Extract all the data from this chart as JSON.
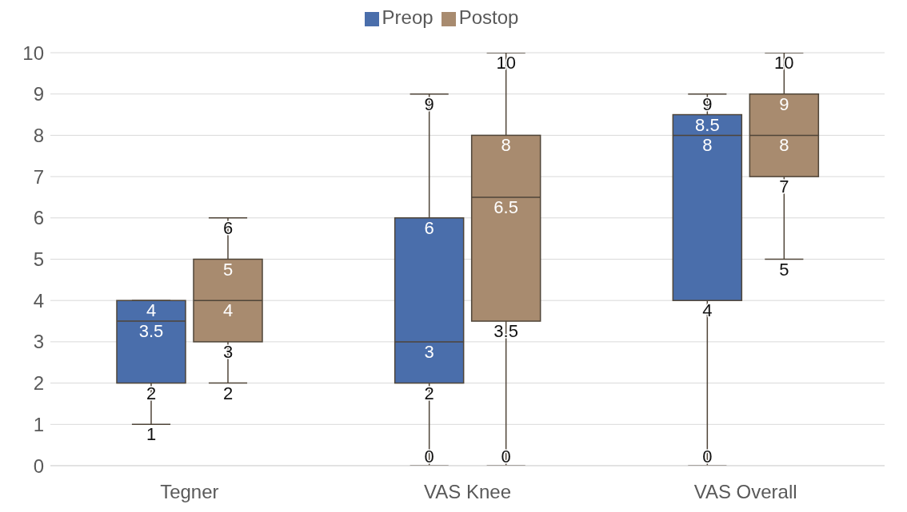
{
  "chart_data": {
    "type": "box",
    "categories": [
      "Tegner",
      "VAS Knee",
      "VAS Overall"
    ],
    "series": [
      {
        "name": "Preop",
        "color": "#4a6eab",
        "boxes": [
          {
            "low": 1,
            "q1": 2,
            "median": 3.5,
            "q3": 4,
            "high": 4
          },
          {
            "low": 0,
            "q1": 2,
            "median": 3,
            "q3": 6,
            "high": 9
          },
          {
            "low": 0,
            "q1": 4,
            "median": 8,
            "q3": 8.5,
            "high": 9
          }
        ]
      },
      {
        "name": "Postop",
        "color": "#a88b6f",
        "boxes": [
          {
            "low": 2,
            "q1": 3,
            "median": 4,
            "q3": 5,
            "high": 6
          },
          {
            "low": 0,
            "q1": 3.5,
            "median": 6.5,
            "q3": 8,
            "high": 10
          },
          {
            "low": 5,
            "q1": 7,
            "median": 8,
            "q3": 9,
            "high": 10
          }
        ]
      }
    ],
    "annotations": [
      "4",
      "3.5",
      "2",
      "1",
      "6",
      "5",
      "4",
      "3",
      "2",
      "9",
      "6",
      "3",
      "2",
      "0",
      "10",
      "8",
      "6.5",
      "3.5",
      "0",
      "9",
      "8.5",
      "8",
      "4",
      "0",
      "10",
      "9",
      "8",
      "7",
      "5"
    ],
    "ylim": [
      0,
      10
    ],
    "yticks": [
      0,
      1,
      2,
      3,
      4,
      5,
      6,
      7,
      8,
      9,
      10
    ],
    "grid": "y",
    "legend": "top"
  }
}
